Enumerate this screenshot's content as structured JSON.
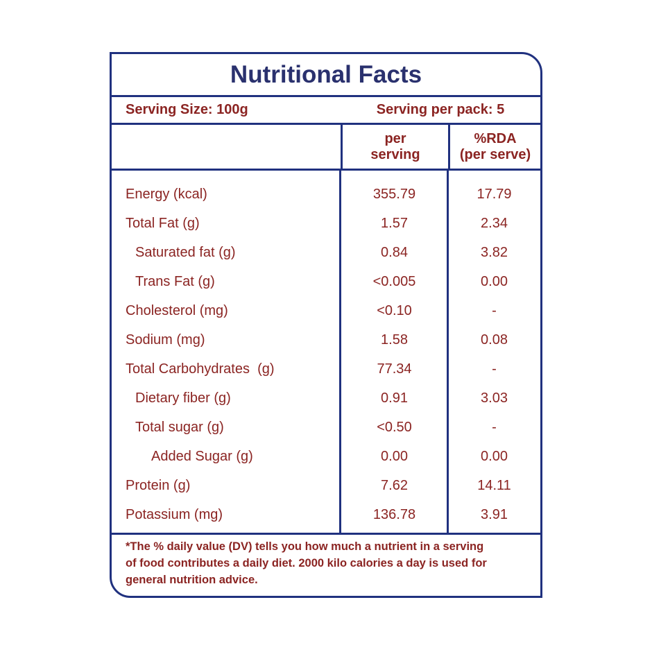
{
  "colors": {
    "border_navy": "#20317f",
    "title_navy": "#2a316e",
    "text_maroon": "#8b2422",
    "background": "#ffffff"
  },
  "title": "Nutritional Facts",
  "serving": {
    "size_label": "Serving Size: 100g",
    "per_pack_label": "Serving per pack: 5"
  },
  "header": {
    "col_per_serving": "per\nserving",
    "col_rda": "%RDA\n(per serve)"
  },
  "rows": [
    {
      "label": "Energy (kcal)",
      "indent": 0,
      "per_serving": "355.79",
      "rda": "17.79"
    },
    {
      "label": "Total Fat (g)",
      "indent": 0,
      "per_serving": "1.57",
      "rda": "2.34"
    },
    {
      "label": "Saturated fat (g)",
      "indent": 1,
      "per_serving": "0.84",
      "rda": "3.82"
    },
    {
      "label": "Trans Fat (g)",
      "indent": 1,
      "per_serving": "<0.005",
      "rda": "0.00"
    },
    {
      "label": "Cholesterol (mg)",
      "indent": 0,
      "per_serving": "<0.10",
      "rda": "-"
    },
    {
      "label": "Sodium (mg)",
      "indent": 0,
      "per_serving": "1.58",
      "rda": "0.08"
    },
    {
      "label": "Total Carbohydrates  (g)",
      "indent": 0,
      "per_serving": "77.34",
      "rda": "-"
    },
    {
      "label": "Dietary fiber (g)",
      "indent": 1,
      "per_serving": "0.91",
      "rda": "3.03"
    },
    {
      "label": "Total sugar (g)",
      "indent": 1,
      "per_serving": "<0.50",
      "rda": "-"
    },
    {
      "label": "Added Sugar (g)",
      "indent": 2,
      "per_serving": "0.00",
      "rda": "0.00"
    },
    {
      "label": "Protein (g)",
      "indent": 0,
      "per_serving": "7.62",
      "rda": "14.11"
    },
    {
      "label": "Potassium (mg)",
      "indent": 0,
      "per_serving": "136.78",
      "rda": "3.91"
    }
  ],
  "footnote": "*The % daily value (DV) tells you how much a nutrient in a serving\nof food contributes a daily diet. 2000 kilo calories a day is used for\ngeneral nutrition advice."
}
